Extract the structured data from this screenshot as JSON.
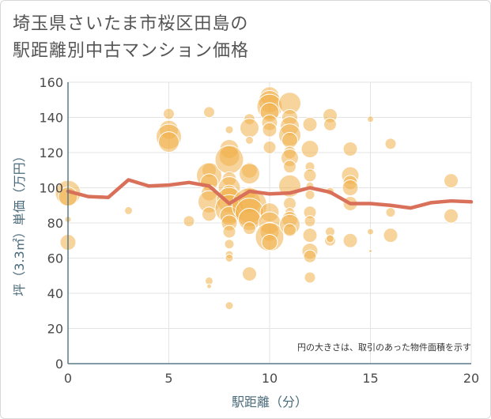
{
  "title_line1": "埼玉県さいたま市桜区田島の",
  "title_line2": "駅距離別中古マンション価格",
  "chart_data": {
    "type": "scatter",
    "xlabel": "駅距離（分）",
    "ylabel": "坪（3.3㎡）単価（万円）",
    "xlim": [
      0,
      20
    ],
    "ylim": [
      0,
      160
    ],
    "xticks": [
      0,
      5,
      10,
      15,
      20
    ],
    "yticks": [
      0,
      20,
      40,
      60,
      80,
      100,
      120,
      140,
      160
    ],
    "grid": true,
    "note": "円の大きさは、取引のあった物件面積を示す",
    "colors": {
      "bubble": "#f0b04a",
      "line": "#d9705a",
      "axis": "#5a7a8a"
    },
    "average_line": {
      "x": [
        0,
        1,
        2,
        3,
        4,
        5,
        6,
        7,
        8,
        9,
        10,
        11,
        12,
        13,
        14,
        15,
        16,
        17,
        18,
        19,
        20
      ],
      "y": [
        98,
        95,
        94.5,
        104.5,
        101,
        101.5,
        103,
        101,
        91,
        98,
        96.5,
        97,
        100,
        97.5,
        91,
        91,
        90,
        88.5,
        91.5,
        92.5,
        92
      ]
    },
    "points": [
      {
        "x": 0,
        "y": 97,
        "r": 16
      },
      {
        "x": 0,
        "y": 95,
        "r": 12
      },
      {
        "x": 0,
        "y": 69,
        "r": 10
      },
      {
        "x": 0,
        "y": 82,
        "r": 4
      },
      {
        "x": 3,
        "y": 87,
        "r": 5
      },
      {
        "x": 5,
        "y": 142,
        "r": 7
      },
      {
        "x": 5,
        "y": 133,
        "r": 12
      },
      {
        "x": 5,
        "y": 129,
        "r": 16
      },
      {
        "x": 5,
        "y": 126,
        "r": 13
      },
      {
        "x": 6,
        "y": 81,
        "r": 7
      },
      {
        "x": 7,
        "y": 143,
        "r": 7
      },
      {
        "x": 7,
        "y": 110,
        "r": 9
      },
      {
        "x": 7,
        "y": 107,
        "r": 16
      },
      {
        "x": 7,
        "y": 103,
        "r": 11
      },
      {
        "x": 7,
        "y": 97,
        "r": 10
      },
      {
        "x": 7,
        "y": 92,
        "r": 14
      },
      {
        "x": 7,
        "y": 85,
        "r": 9
      },
      {
        "x": 7,
        "y": 47,
        "r": 5
      },
      {
        "x": 7,
        "y": 44,
        "r": 3
      },
      {
        "x": 8,
        "y": 133,
        "r": 5
      },
      {
        "x": 8,
        "y": 122,
        "r": 12
      },
      {
        "x": 8,
        "y": 118,
        "r": 13
      },
      {
        "x": 8,
        "y": 116,
        "r": 18
      },
      {
        "x": 8,
        "y": 105,
        "r": 9
      },
      {
        "x": 8,
        "y": 100,
        "r": 14
      },
      {
        "x": 8,
        "y": 97,
        "r": 10
      },
      {
        "x": 8,
        "y": 93,
        "r": 16
      },
      {
        "x": 8,
        "y": 88,
        "r": 18
      },
      {
        "x": 8,
        "y": 84,
        "r": 12
      },
      {
        "x": 8,
        "y": 80,
        "r": 10
      },
      {
        "x": 8,
        "y": 75,
        "r": 8
      },
      {
        "x": 8,
        "y": 68,
        "r": 6
      },
      {
        "x": 8,
        "y": 62,
        "r": 5
      },
      {
        "x": 8,
        "y": 60,
        "r": 5
      },
      {
        "x": 8,
        "y": 33,
        "r": 5
      },
      {
        "x": 9,
        "y": 139,
        "r": 7
      },
      {
        "x": 9,
        "y": 134,
        "r": 12
      },
      {
        "x": 9,
        "y": 127,
        "r": 5
      },
      {
        "x": 9,
        "y": 110,
        "r": 10
      },
      {
        "x": 9,
        "y": 108,
        "r": 13
      },
      {
        "x": 9,
        "y": 97,
        "r": 8
      },
      {
        "x": 9,
        "y": 92,
        "r": 14
      },
      {
        "x": 9,
        "y": 90,
        "r": 22
      },
      {
        "x": 9,
        "y": 86,
        "r": 18
      },
      {
        "x": 9,
        "y": 82,
        "r": 14
      },
      {
        "x": 9,
        "y": 77,
        "r": 8
      },
      {
        "x": 9,
        "y": 51,
        "r": 9
      },
      {
        "x": 10,
        "y": 152,
        "r": 12
      },
      {
        "x": 10,
        "y": 149,
        "r": 14
      },
      {
        "x": 10,
        "y": 146,
        "r": 16
      },
      {
        "x": 10,
        "y": 143,
        "r": 12
      },
      {
        "x": 10,
        "y": 137,
        "r": 10
      },
      {
        "x": 10,
        "y": 133,
        "r": 9
      },
      {
        "x": 10,
        "y": 123,
        "r": 8
      },
      {
        "x": 10,
        "y": 86,
        "r": 12
      },
      {
        "x": 10,
        "y": 80,
        "r": 14
      },
      {
        "x": 10,
        "y": 75,
        "r": 12
      },
      {
        "x": 10,
        "y": 72,
        "r": 18
      },
      {
        "x": 10,
        "y": 69,
        "r": 10
      },
      {
        "x": 11,
        "y": 148,
        "r": 14
      },
      {
        "x": 11,
        "y": 140,
        "r": 10
      },
      {
        "x": 11,
        "y": 135,
        "r": 12
      },
      {
        "x": 11,
        "y": 130,
        "r": 14
      },
      {
        "x": 11,
        "y": 127,
        "r": 10
      },
      {
        "x": 11,
        "y": 120,
        "r": 8
      },
      {
        "x": 11,
        "y": 117,
        "r": 11
      },
      {
        "x": 11,
        "y": 112,
        "r": 8
      },
      {
        "x": 11,
        "y": 101,
        "r": 14
      },
      {
        "x": 11,
        "y": 91,
        "r": 8
      },
      {
        "x": 11,
        "y": 86,
        "r": 6
      },
      {
        "x": 11,
        "y": 82,
        "r": 10
      },
      {
        "x": 11,
        "y": 79,
        "r": 13
      },
      {
        "x": 11,
        "y": 76,
        "r": 8
      },
      {
        "x": 12,
        "y": 136,
        "r": 9
      },
      {
        "x": 12,
        "y": 122,
        "r": 11
      },
      {
        "x": 12,
        "y": 112,
        "r": 6
      },
      {
        "x": 12,
        "y": 107,
        "r": 8
      },
      {
        "x": 12,
        "y": 101,
        "r": 5
      },
      {
        "x": 12,
        "y": 96,
        "r": 6
      },
      {
        "x": 12,
        "y": 86,
        "r": 8
      },
      {
        "x": 12,
        "y": 81,
        "r": 7
      },
      {
        "x": 12,
        "y": 73,
        "r": 9
      },
      {
        "x": 12,
        "y": 64,
        "r": 10
      },
      {
        "x": 12,
        "y": 61,
        "r": 8
      },
      {
        "x": 12,
        "y": 49,
        "r": 7
      },
      {
        "x": 13,
        "y": 141,
        "r": 9
      },
      {
        "x": 13,
        "y": 136,
        "r": 8
      },
      {
        "x": 13,
        "y": 98,
        "r": 5
      },
      {
        "x": 13,
        "y": 75,
        "r": 6
      },
      {
        "x": 13,
        "y": 70,
        "r": 7
      },
      {
        "x": 13,
        "y": 71,
        "r": 5
      },
      {
        "x": 14,
        "y": 122,
        "r": 9
      },
      {
        "x": 14,
        "y": 107,
        "r": 11
      },
      {
        "x": 14,
        "y": 103,
        "r": 9
      },
      {
        "x": 14,
        "y": 100,
        "r": 10
      },
      {
        "x": 14,
        "y": 91,
        "r": 9
      },
      {
        "x": 14,
        "y": 70,
        "r": 9
      },
      {
        "x": 15,
        "y": 139,
        "r": 4
      },
      {
        "x": 15,
        "y": 75,
        "r": 4
      },
      {
        "x": 15,
        "y": 64,
        "r": 2
      },
      {
        "x": 16,
        "y": 125,
        "r": 7
      },
      {
        "x": 16,
        "y": 86,
        "r": 6
      },
      {
        "x": 16,
        "y": 73,
        "r": 9
      },
      {
        "x": 19,
        "y": 104,
        "r": 9
      },
      {
        "x": 19,
        "y": 84,
        "r": 9
      }
    ]
  }
}
